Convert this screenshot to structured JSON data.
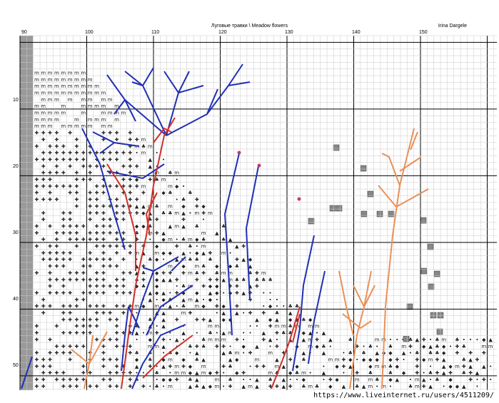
{
  "header": {
    "title": "Луговые травки \\ Meadow flowers",
    "author": "Irina Dargele"
  },
  "axes": {
    "columns": [
      "90",
      "100",
      "110",
      "120",
      "130",
      "140",
      "150"
    ],
    "rows": [
      "10",
      "20",
      "30",
      "40",
      "50"
    ]
  },
  "watermark": "https://www.liveinternet.ru/users/4511209/",
  "colors": {
    "grid": "#c8c8c8",
    "grid_major": "#000000",
    "blue_stitch": "#1f2fb5",
    "red_stitch": "#d0302a",
    "orange_stitch": "#e8915a",
    "left_strip": "#9a9a9a"
  }
}
